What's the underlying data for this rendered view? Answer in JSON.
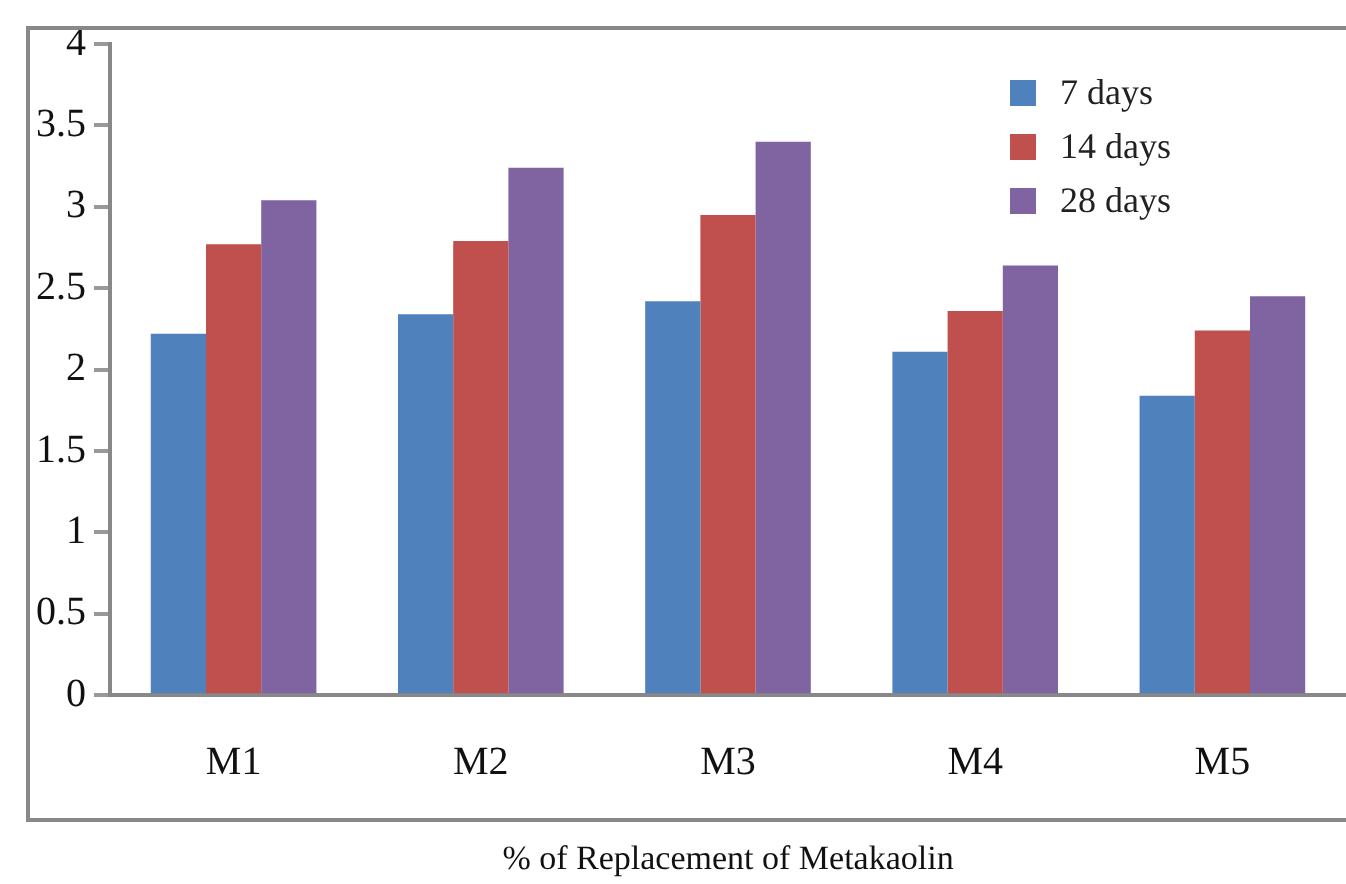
{
  "chart_data": {
    "type": "bar",
    "xlabel": "% of Replacement of Metakaolin",
    "categories": [
      "M1",
      "M2",
      "M3",
      "M4",
      "M5"
    ],
    "series": [
      {
        "name": "7 days",
        "color": "#4f81bd",
        "values": [
          2.22,
          2.34,
          2.42,
          2.11,
          1.84
        ]
      },
      {
        "name": "14 days",
        "color": "#c0504d",
        "values": [
          2.77,
          2.79,
          2.95,
          2.36,
          2.24
        ]
      },
      {
        "name": "28 days",
        "color": "#8064a2",
        "values": [
          3.04,
          3.24,
          3.4,
          2.64,
          2.45
        ]
      }
    ],
    "ylim": [
      0,
      4
    ],
    "yticks": [
      0,
      0.5,
      1,
      1.5,
      2,
      2.5,
      3,
      3.5,
      4
    ],
    "grid": false,
    "legend": "top right"
  }
}
